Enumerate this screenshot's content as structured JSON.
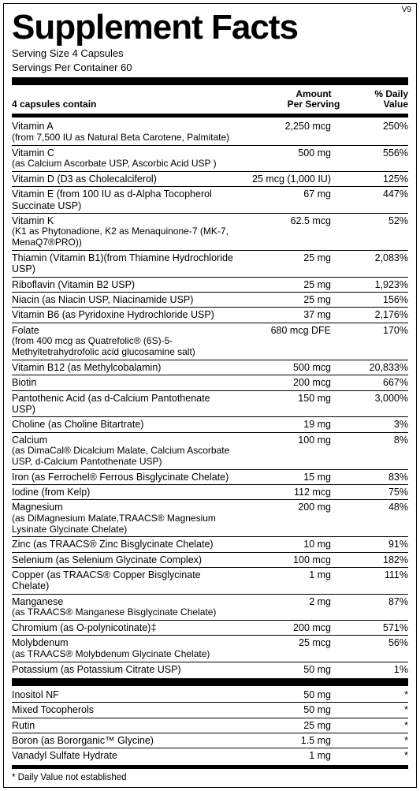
{
  "version": "V9",
  "title": "Supplement Facts",
  "serving_size_label": "Serving Size 4 Capsules",
  "servings_per_container_label": "Servings Per Container 60",
  "header": {
    "col1": "4 capsules contain",
    "col2_line1": "Amount",
    "col2_line2": "Per Serving",
    "col3_line1": "% Daily",
    "col3_line2": "Value"
  },
  "rows": [
    {
      "name": "Vitamin A",
      "sub": "(from 7,500 IU as Natural Beta Carotene, Palmitate)",
      "amount": "2,250 mcg",
      "dv": "250%"
    },
    {
      "name": "Vitamin C",
      "sub": "(as Calcium Ascorbate USP, Ascorbic Acid USP )",
      "amount": "500 mg",
      "dv": "556%"
    },
    {
      "name": "Vitamin D (D3 as Cholecalciferol)",
      "sub": "",
      "amount": "25 mcg (1,000 IU)",
      "dv": "125%"
    },
    {
      "name": "Vitamin E (from 100 IU as d-Alpha Tocopherol Succinate USP)",
      "sub": "",
      "amount": "67 mg",
      "dv": "447%"
    },
    {
      "name": "Vitamin K",
      "sub": "(K1 as Phytonadione, K2 as Menaquinone-7 (MK-7, MenaQ7®PRO))",
      "amount": "62.5 mcg",
      "dv": "52%"
    },
    {
      "name": "Thiamin (Vitamin B1)(from Thiamine Hydrochloride USP)",
      "sub": "",
      "amount": "25 mg",
      "dv": "2,083%"
    },
    {
      "name": "Riboflavin (Vitamin B2 USP)",
      "sub": "",
      "amount": "25 mg",
      "dv": "1,923%"
    },
    {
      "name": "Niacin (as Niacin USP, Niacinamide USP)",
      "sub": "",
      "amount": "25 mg",
      "dv": "156%"
    },
    {
      "name": "Vitamin B6 (as Pyridoxine Hydrochloride USP)",
      "sub": "",
      "amount": "37 mg",
      "dv": "2,176%"
    },
    {
      "name": "Folate",
      "sub": "(from 400 mcg as Quatrefolic® (6S)-5-Methyltetrahydrofolic acid glucosamine salt)",
      "amount": "680 mcg DFE",
      "dv": "170%"
    },
    {
      "name": "Vitamin B12 (as Methylcobalamin)",
      "sub": "",
      "amount": "500 mcg",
      "dv": "20,833%"
    },
    {
      "name": "Biotin",
      "sub": "",
      "amount": "200 mcg",
      "dv": "667%"
    },
    {
      "name": "Pantothenic Acid (as d-Calcium Pantothenate USP)",
      "sub": "",
      "amount": "150 mg",
      "dv": "3,000%"
    },
    {
      "name": "Choline (as Choline Bitartrate)",
      "sub": "",
      "amount": "19 mg",
      "dv": "3%"
    },
    {
      "name": "Calcium",
      "sub": "(as DimaCal® Dicalcium Malate, Calcium Ascorbate USP, d-Calcium Pantothenate USP)",
      "amount": "100 mg",
      "dv": "8%"
    },
    {
      "name": "Iron (as Ferrochel® Ferrous Bisglycinate Chelate)",
      "sub": "",
      "amount": "15 mg",
      "dv": "83%"
    },
    {
      "name": "Iodine (from Kelp)",
      "sub": "",
      "amount": "112 mcg",
      "dv": "75%"
    },
    {
      "name": "Magnesium",
      "sub": "(as DiMagnesium Malate,TRAACS® Magnesium Lysinate Glycinate Chelate)",
      "amount": "200 mg",
      "dv": "48%"
    },
    {
      "name": "Zinc (as TRAACS® Zinc Bisglycinate Chelate)",
      "sub": "",
      "amount": "10 mg",
      "dv": "91%"
    },
    {
      "name": "Selenium (as Selenium Glycinate Complex)",
      "sub": "",
      "amount": "100 mcg",
      "dv": "182%"
    },
    {
      "name": "Copper (as TRAACS® Copper Bisglycinate Chelate)",
      "sub": "",
      "amount": "1 mg",
      "dv": "111%"
    },
    {
      "name": "Manganese",
      "sub": "(as TRAACS® Manganese Bisglycinate Chelate)",
      "amount": "2 mg",
      "dv": "87%"
    },
    {
      "name": "Chromium (as O-polynicotinate)‡",
      "sub": "",
      "amount": "200 mcg",
      "dv": "571%"
    },
    {
      "name": "Molybdenum",
      "sub": "(as TRAACS® Molybdenum Glycinate Chelate)",
      "amount": "25 mcg",
      "dv": "56%"
    },
    {
      "name": "Potassium (as Potassium Citrate USP)",
      "sub": "",
      "amount": "50 mg",
      "dv": "1%"
    }
  ],
  "rows2": [
    {
      "name": "Inositol NF",
      "sub": "",
      "amount": "50 mg",
      "dv": "*"
    },
    {
      "name": "Mixed Tocopherols",
      "sub": "",
      "amount": "50 mg",
      "dv": "*"
    },
    {
      "name": "Rutin",
      "sub": "",
      "amount": "25 mg",
      "dv": "*"
    },
    {
      "name": "Boron (as Bororganic™ Glycine)",
      "sub": "",
      "amount": "1.5 mg",
      "dv": "*"
    },
    {
      "name": "Vanadyl Sulfate Hydrate",
      "sub": "",
      "amount": "1 mg",
      "dv": "*"
    }
  ],
  "footnote": "* Daily Value not established"
}
